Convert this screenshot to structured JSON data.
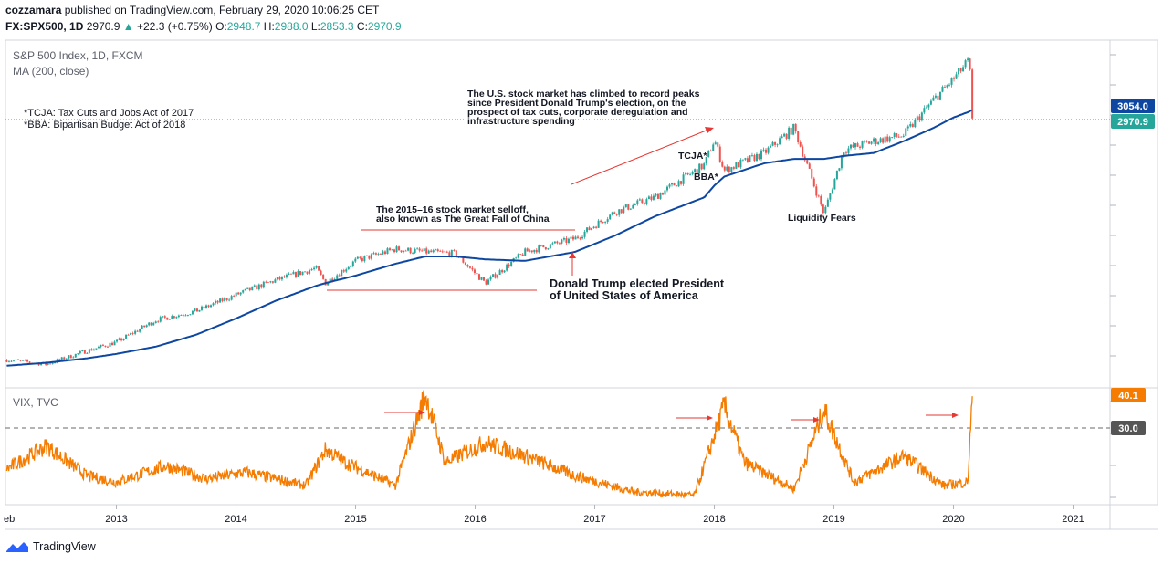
{
  "header": {
    "publisher": "cozzamara",
    "published_text": "published on TradingView.com, February 29, 2020 10:06:25 CET",
    "symbol_line": "FX:SPX500, 1D",
    "last": "2970.9",
    "change": "+22.3 (+0.75%)",
    "o_label": "O:",
    "o": "2948.7",
    "h_label": "H:",
    "h": "2988.0",
    "l_label": "L:",
    "l": "2853.3",
    "c_label": "C:",
    "c": "2970.9"
  },
  "main_pane": {
    "title": "S&P 500 Index, 1D, FXCM",
    "ma_label": "MA (200, close)",
    "footnote1": "*TCJA: Tax Cuts and Jobs Act of 2017",
    "footnote2": "*BBA: Bipartisan Budget Act of 2018",
    "price_badge": "2970.9",
    "ma_badge": "3054.0",
    "annotation_us_market": [
      "The U.S. stock market has climbed to record peaks",
      "since President Donald Trump's election, on the",
      "prospect of tax cuts, corporate deregulation and",
      "infrastructure spending"
    ],
    "annotation_selloff": [
      "The 2015–16 stock market selloff,",
      "also known as The Great Fall of China"
    ],
    "annotation_trump": [
      "Donald Trump elected President",
      "of United States of America"
    ],
    "annotation_tcja": "TCJA*",
    "annotation_bba": "BBA*",
    "annotation_liquidity": "Liquidity Fears"
  },
  "vix_pane": {
    "title": "VIX, TVC",
    "badge_value": "40.1",
    "threshold_badge": "30.0"
  },
  "x_axis": {
    "labels": [
      "eb",
      "2013",
      "2014",
      "2015",
      "2016",
      "2017",
      "2018",
      "2019",
      "2020",
      "2021"
    ]
  },
  "footer": {
    "brand": "TradingView"
  },
  "colors": {
    "candle_up": "#26a69a",
    "candle_down": "#ef5350",
    "ma": "#0d47a1",
    "vix": "#f57c00",
    "annotation": "#e53935",
    "price_badge": "#26a69a",
    "ma_badge": "#0d47a1",
    "vix_badge": "#f57c00",
    "threshold_badge": "#555555"
  },
  "chart_data": [
    {
      "type": "candlestick",
      "title": "S&P 500 Index, 1D, FXCM",
      "x": [
        "2012-02",
        "2012-06",
        "2012-10",
        "2013-01",
        "2013-05",
        "2013-09",
        "2014-01",
        "2014-05",
        "2014-09",
        "2014-10",
        "2015-01",
        "2015-05",
        "2015-08",
        "2015-11",
        "2016-02",
        "2016-06",
        "2016-11",
        "2017-03",
        "2017-07",
        "2017-12",
        "2018-01",
        "2018-02",
        "2018-06",
        "2018-09",
        "2018-12",
        "2019-02",
        "2019-05",
        "2019-08",
        "2019-11",
        "2020-01",
        "2020-02-19",
        "2020-02-28"
      ],
      "close": [
        1360,
        1330,
        1420,
        1480,
        1630,
        1690,
        1800,
        1900,
        1980,
        1880,
        2030,
        2110,
        2090,
        2080,
        1880,
        2090,
        2180,
        2360,
        2460,
        2680,
        2850,
        2640,
        2760,
        2930,
        2350,
        2780,
        2840,
        2880,
        3120,
        3260,
        3390,
        2970.9
      ],
      "series": [
        {
          "name": "MA (200, close)",
          "values": [
            1320,
            1340,
            1370,
            1400,
            1450,
            1530,
            1640,
            1760,
            1860,
            1880,
            1930,
            2010,
            2060,
            2060,
            2040,
            2030,
            2090,
            2200,
            2330,
            2460,
            2540,
            2600,
            2690,
            2720,
            2720,
            2740,
            2760,
            2840,
            2930,
            3000,
            3040,
            3054.0
          ]
        }
      ],
      "annotations": [
        {
          "label": "TCJA*",
          "x": "2018-01"
        },
        {
          "label": "BBA*",
          "x": "2018-02"
        },
        {
          "label": "Liquidity Fears",
          "x": "2018-12"
        }
      ],
      "last_price": 2970.9,
      "ma_last": 3054.0
    },
    {
      "type": "line",
      "title": "VIX, TVC",
      "x": [
        "2012-02",
        "2012-06",
        "2012-10",
        "2013-01",
        "2013-06",
        "2013-10",
        "2014-02",
        "2014-08",
        "2014-10",
        "2014-12",
        "2015-05",
        "2015-08",
        "2015-10",
        "2016-02",
        "2016-06",
        "2016-11",
        "2017-05",
        "2017-11",
        "2018-02",
        "2018-04",
        "2018-09",
        "2018-12",
        "2019-03",
        "2019-08",
        "2019-12",
        "2020-02-14",
        "2020-02-28"
      ],
      "values": [
        18,
        25,
        16,
        14,
        19,
        15,
        17,
        13,
        24,
        20,
        13,
        40.7,
        20,
        26,
        22,
        16,
        11,
        10,
        37.3,
        20,
        12,
        36,
        14,
        22,
        13,
        14,
        40.1
      ],
      "threshold": 30.0,
      "last_value": 40.1
    }
  ]
}
